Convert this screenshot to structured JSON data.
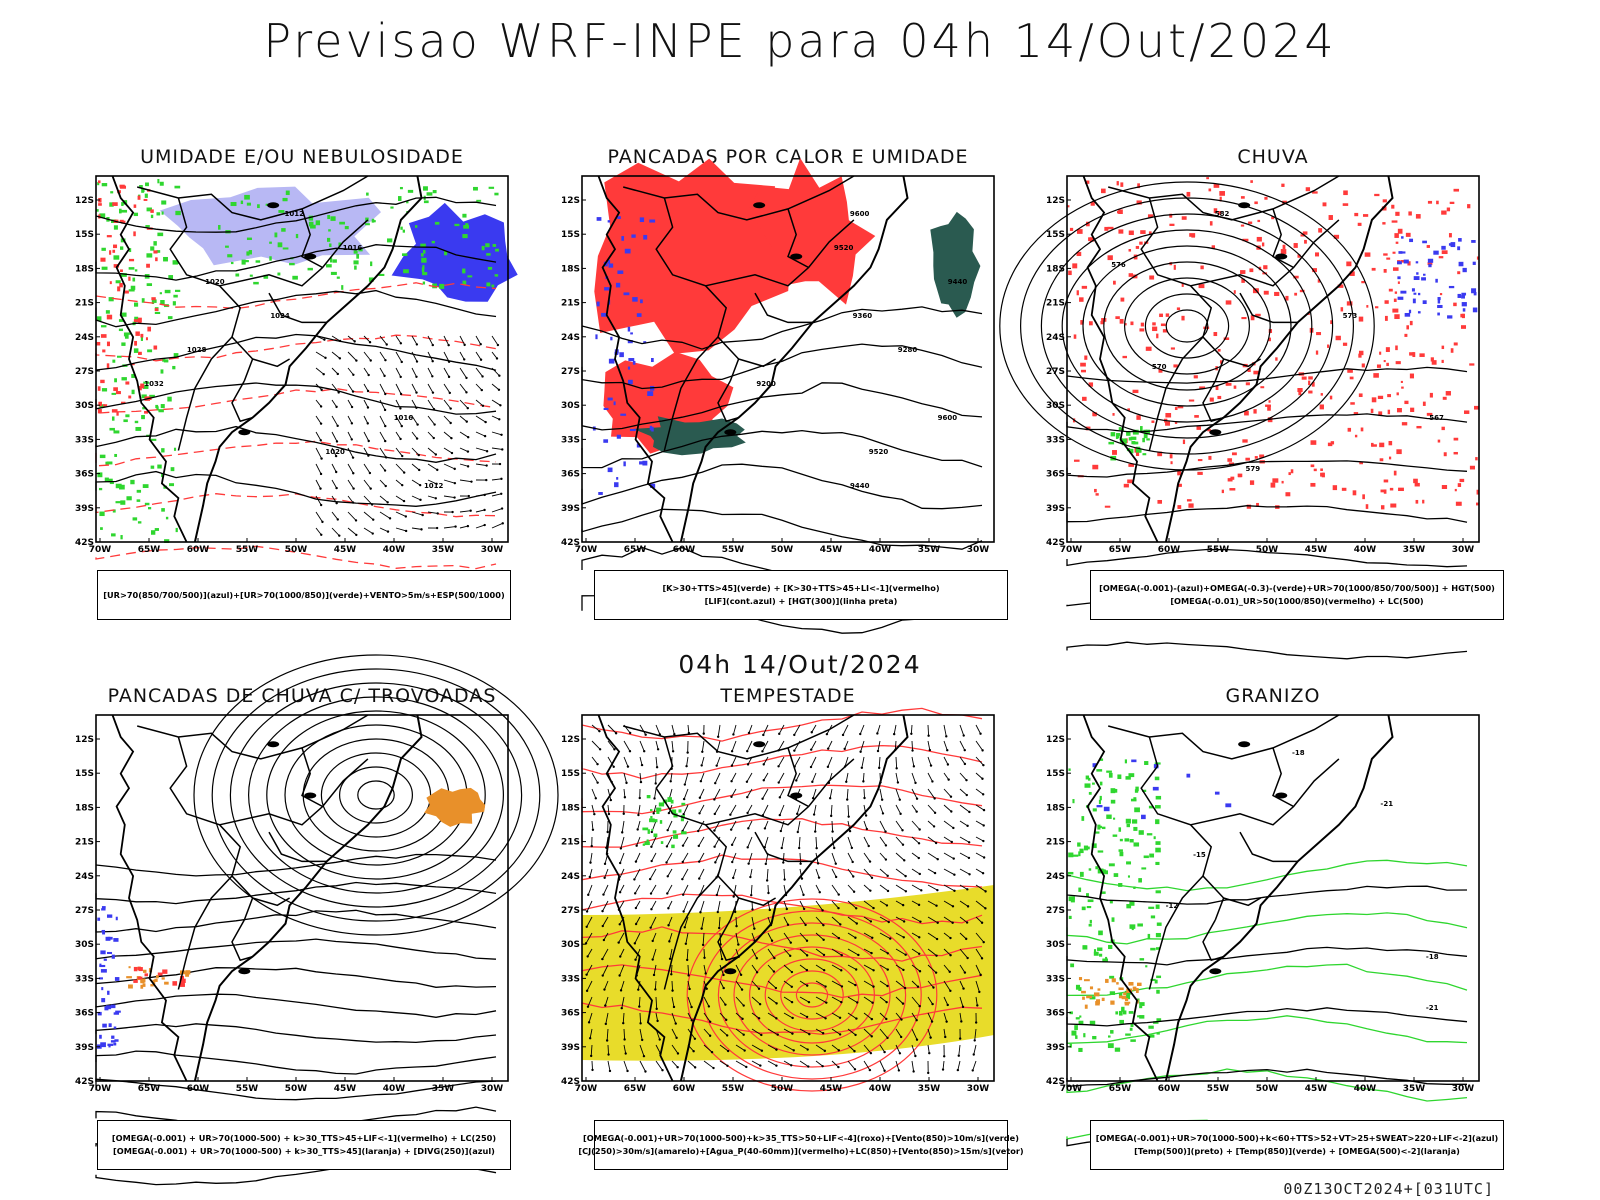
{
  "title": "Previsao WRF-INPE  para 04h 14/Out/2024",
  "mid_title": "04h 14/Out/2024",
  "footer": "00Z13OCT2024+[031UTC]",
  "axis": {
    "lat_ticks": [
      "12S",
      "15S",
      "18S",
      "21S",
      "24S",
      "27S",
      "30S",
      "33S",
      "36S",
      "39S",
      "42S"
    ],
    "lon_ticks": [
      "70W",
      "65W",
      "60W",
      "55W",
      "50W",
      "45W",
      "40W",
      "35W",
      "30W"
    ]
  },
  "panels": [
    {
      "title": "UMIDADE E/OU NEBULOSIDADE",
      "legend": [
        "[UR>70(850/700/500)](azul)+[UR>70(1000/850)](verde)+VENTO>5m/s+ESP(500/1000)"
      ],
      "contour_labels": [
        "1012",
        "1016",
        "1020",
        "1024",
        "1028",
        "1032",
        "1016",
        "1020",
        "1012"
      ]
    },
    {
      "title": "PANCADAS POR CALOR E UMIDADE",
      "legend": [
        "[K>30+TTS>45](verde) + [K>30+TTS>45+LI<-1](vermelho)",
        "[LIF](cont.azul) + [HGT(300)](linha preta)"
      ],
      "contour_labels": [
        "9600",
        "9520",
        "9440",
        "9360",
        "9280",
        "9200",
        "9600",
        "9520",
        "9440"
      ]
    },
    {
      "title": "CHUVA",
      "legend": [
        "[OMEGA(-0.001)-(azul)+OMEGA(-0.3)-(verde)+UR>70(1000/850/700/500)] + HGT(500)",
        "[OMEGA(-0.01)_UR>50(1000/850)(vermelho) + LC(500)"
      ],
      "contour_labels": [
        "582",
        "576",
        "573",
        "570",
        "567",
        "579"
      ]
    },
    {
      "title": "PANCADAS DE CHUVA C/ TROVOADAS",
      "legend": [
        "[OMEGA(-0.001) + UR>70(1000-500) + k>30_TTS>45+LIF<-1](vermelho) + LC(250)",
        "[OMEGA(-0.001) + UR>70(1000-500) + k>30_TTS>45](laranja) + [DIVG(250)](azul)"
      ],
      "contour_labels": []
    },
    {
      "title": "TEMPESTADE",
      "legend": [
        "[OMEGA(-0.001)+UR>70(1000-500)+k>35_TTS>50+LIF<-4](roxo)+[Vento(850)>10m/s](verde)",
        "[CJ(250)>30m/s](amarelo)+[Agua_P(40-60mm)](vermelho)+LC(850)+[Vento(850)>15m/s](vetor)"
      ],
      "contour_labels": []
    },
    {
      "title": "GRANIZO",
      "legend": [
        "[OMEGA(-0.001)+UR>70(1000-500)+k<60+TTS>52+VT>25+SWEAT>220+LIF<-2](azul)",
        "[Temp(500)](preto) + [Temp(850)](verde) + [OMEGA(500)<-2](laranja)"
      ],
      "contour_labels": [
        "-18",
        "-21",
        "-15",
        "-12",
        "-18",
        "-21"
      ]
    }
  ],
  "colors": {
    "black": "#000000",
    "red": "#ff3a3a",
    "green": "#2fd62f",
    "blue": "#3a3af0",
    "light_blue": "#b8b8f4",
    "dark_teal": "#2a5a50",
    "yellow": "#e8dc2a",
    "orange": "#e8902a"
  }
}
